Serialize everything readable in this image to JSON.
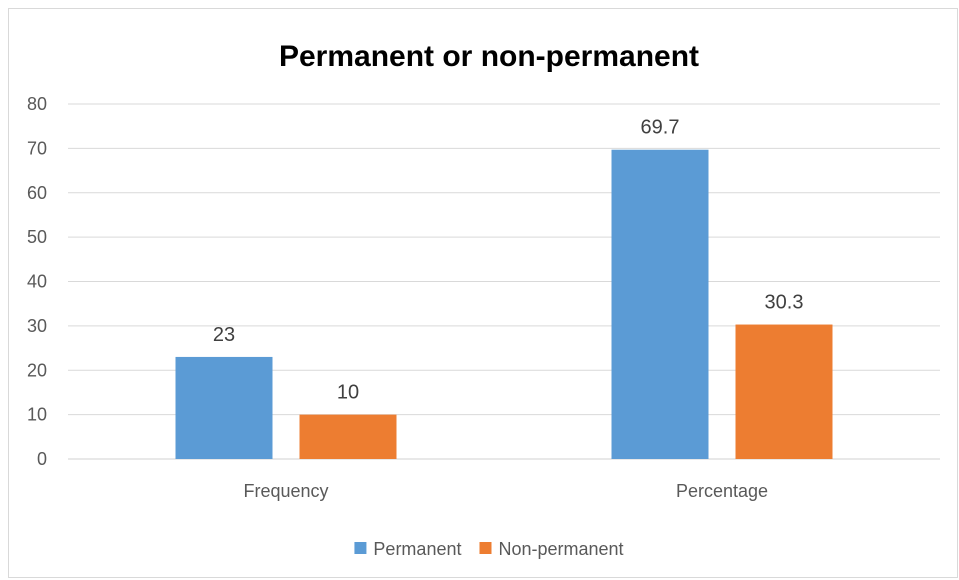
{
  "chart_data": {
    "type": "bar",
    "title": "Permanent or non-permanent",
    "categories": [
      "Frequency",
      "Percentage"
    ],
    "series": [
      {
        "name": "Permanent",
        "values": [
          23,
          69.7
        ],
        "color": "#5b9bd5"
      },
      {
        "name": "Non-permanent",
        "values": [
          10,
          30.3
        ],
        "color": "#ed7d31"
      }
    ],
    "ylim": [
      0,
      80
    ],
    "yticks": [
      0,
      10,
      20,
      30,
      40,
      50,
      60,
      70,
      80
    ],
    "grid": true,
    "legend": "bottom",
    "xlabel": "",
    "ylabel": ""
  }
}
